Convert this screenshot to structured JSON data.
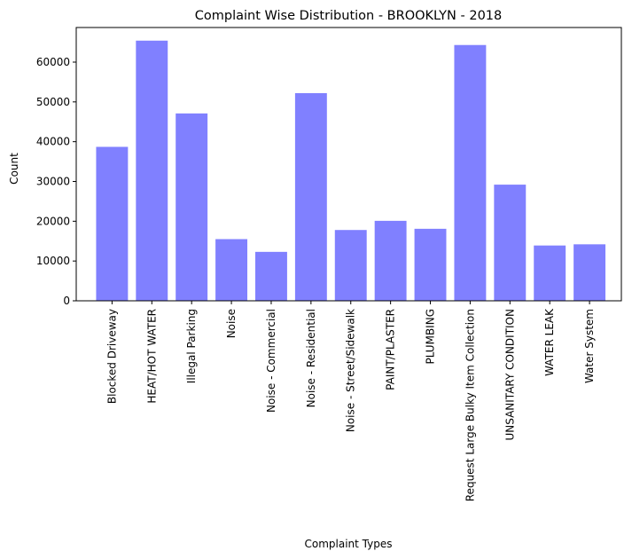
{
  "chart_data": {
    "type": "bar",
    "title": "Complaint Wise Distribution - BROOKLYN - 2018",
    "xlabel": "Complaint Types",
    "ylabel": "Count",
    "ylim": [
      0,
      68700
    ],
    "yticks": [
      0,
      10000,
      20000,
      30000,
      40000,
      50000,
      60000
    ],
    "grid": false,
    "bar_color": "#8080ff",
    "categories": [
      "Blocked Driveway",
      "HEAT/HOT WATER",
      "Illegal Parking",
      "Noise",
      "Noise - Commercial",
      "Noise - Residential",
      "Noise - Street/Sidewalk",
      "PAINT/PLASTER",
      "PLUMBING",
      "Request Large Bulky Item Collection",
      "UNSANITARY CONDITION",
      "WATER LEAK",
      "Water System"
    ],
    "values": [
      38700,
      65400,
      47100,
      15500,
      12300,
      52200,
      17800,
      20100,
      18100,
      64300,
      29200,
      13900,
      14200
    ]
  }
}
